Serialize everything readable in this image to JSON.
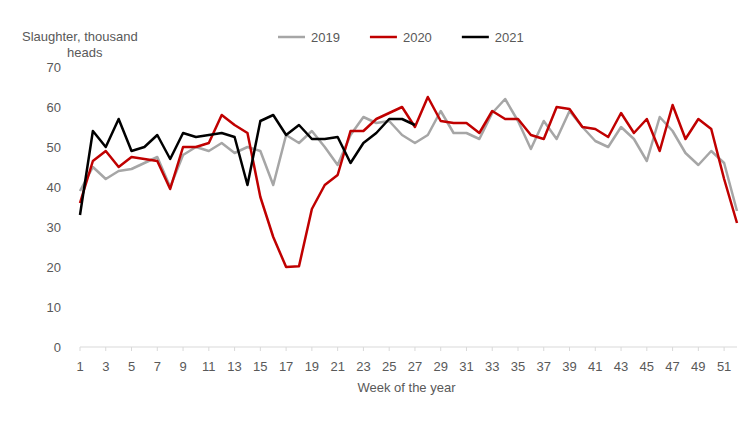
{
  "chart_data": {
    "type": "line",
    "y_label": "Slaughter, thousand heads",
    "x_label": "Week of the year",
    "x": [
      1,
      2,
      3,
      4,
      5,
      6,
      7,
      8,
      9,
      10,
      11,
      12,
      13,
      14,
      15,
      16,
      17,
      18,
      19,
      20,
      21,
      22,
      23,
      24,
      25,
      26,
      27,
      28,
      29,
      30,
      31,
      32,
      33,
      34,
      35,
      36,
      37,
      38,
      39,
      40,
      41,
      42,
      43,
      44,
      45,
      46,
      47,
      48,
      49,
      50,
      51,
      52
    ],
    "xlim": [
      1,
      52
    ],
    "xticks": [
      1,
      3,
      5,
      7,
      9,
      11,
      13,
      15,
      17,
      19,
      21,
      23,
      25,
      27,
      29,
      31,
      33,
      35,
      37,
      39,
      41,
      43,
      45,
      47,
      49,
      51
    ],
    "ylim": [
      0,
      70
    ],
    "yticks": [
      0,
      10,
      20,
      30,
      40,
      50,
      60,
      70
    ],
    "grid": false,
    "legend": "top",
    "series": [
      {
        "name": "2019",
        "color": "#a6a6a6",
        "values": [
          39,
          45,
          42,
          44,
          44.5,
          46,
          47.5,
          40,
          48,
          50,
          49,
          51,
          48.5,
          50,
          49,
          40.5,
          53,
          51,
          54,
          50,
          45.5,
          53,
          57.5,
          56,
          56.5,
          53,
          51,
          53,
          59,
          53.5,
          53.5,
          52,
          58.5,
          62,
          56.5,
          49.5,
          56.5,
          52,
          59,
          55,
          51.5,
          50,
          55,
          52,
          46.5,
          57.5,
          54,
          48.5,
          45.5,
          49,
          46,
          34
        ]
      },
      {
        "name": "2020",
        "color": "#c00000",
        "values": [
          36,
          46.5,
          49,
          45,
          47.5,
          47,
          46.5,
          39.5,
          50,
          50,
          51,
          58,
          55.5,
          53.5,
          37.5,
          27.5,
          20,
          20.2,
          34.5,
          40.5,
          43,
          54,
          54,
          57,
          58.5,
          60,
          55,
          62.5,
          56.5,
          56,
          56,
          53.5,
          59,
          57,
          57,
          53,
          52,
          60,
          59.5,
          55,
          54.5,
          52.5,
          58.5,
          53.5,
          57,
          49,
          60.5,
          52,
          57,
          54.5,
          42,
          31
        ]
      },
      {
        "name": "2021",
        "color": "#000000",
        "values": [
          33,
          54,
          50,
          57,
          49,
          50,
          53,
          47,
          53.5,
          52.5,
          53,
          53.5,
          52.5,
          40.5,
          56.5,
          58,
          53,
          55.5,
          52,
          52,
          52.5,
          46,
          51,
          53.5,
          57,
          57,
          55.5,
          null,
          null,
          null,
          null,
          null,
          null,
          null,
          null,
          null,
          null,
          null,
          null,
          null,
          null,
          null,
          null,
          null,
          null,
          null,
          null,
          null,
          null,
          null,
          null,
          null
        ]
      }
    ]
  }
}
